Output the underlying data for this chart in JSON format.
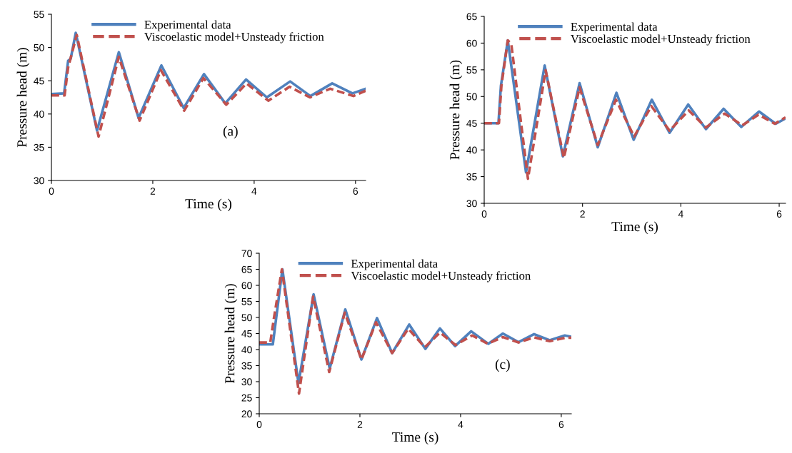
{
  "chart_data": [
    {
      "type": "line",
      "xlabel": "Time (s)",
      "ylabel": "Pressure head (m)",
      "xlim": [
        0,
        6.2
      ],
      "xticks": [
        0,
        2,
        4,
        6
      ],
      "ylim": [
        30,
        55
      ],
      "yticks": [
        30,
        35,
        40,
        45,
        50,
        55
      ],
      "legend": "top",
      "grid": false,
      "annotations": [
        "(a)"
      ],
      "series": [
        {
          "name": "Experimental data",
          "color": "#4f81bd",
          "line_style": "solid",
          "x": [
            0,
            0.25,
            0.33,
            0.38,
            0.48,
            0.9,
            1.33,
            1.72,
            2.17,
            2.61,
            3.01,
            3.43,
            3.84,
            4.25,
            4.71,
            5.11,
            5.54,
            5.94,
            6.2
          ],
          "values": [
            43,
            43.1,
            48,
            48.3,
            52.2,
            37.5,
            49.3,
            39.4,
            47.3,
            40.9,
            46,
            41.6,
            45.2,
            42.5,
            44.9,
            42.7,
            44.6,
            43.1,
            43.8
          ]
        },
        {
          "name": "Viscoelastic model+Unsteady friction",
          "color": "#c0504d",
          "line_style": "dashed",
          "x": [
            0,
            0.26,
            0.33,
            0.5,
            0.93,
            1.33,
            1.74,
            2.16,
            2.62,
            3.0,
            3.45,
            3.85,
            4.28,
            4.7,
            5.1,
            5.5,
            5.96,
            6.2
          ],
          "values": [
            42.8,
            42.8,
            47,
            51.9,
            36.6,
            48.6,
            39.0,
            46.6,
            40.5,
            45.4,
            41.4,
            44.6,
            42.0,
            44.1,
            42.5,
            43.8,
            42.7,
            43.5
          ]
        }
      ]
    },
    {
      "type": "line",
      "xlabel": "Time (s)",
      "ylabel": "Pressure head (m)",
      "xlim": [
        0,
        6.13
      ],
      "xticks": [
        0,
        2,
        4,
        6
      ],
      "ylim": [
        30,
        65
      ],
      "yticks": [
        30,
        35,
        40,
        45,
        50,
        55,
        60,
        65
      ],
      "legend": "top",
      "grid": false,
      "series": [
        {
          "name": "Experimental data",
          "color": "#4f81bd",
          "line_style": "solid",
          "x": [
            0,
            0.29,
            0.34,
            0.48,
            0.85,
            1.23,
            1.6,
            1.94,
            2.31,
            2.69,
            3.04,
            3.41,
            3.77,
            4.15,
            4.51,
            4.87,
            5.23,
            5.59,
            5.93,
            6.13
          ],
          "values": [
            45,
            45,
            52,
            60.5,
            35.8,
            55.8,
            38.8,
            52.5,
            40.5,
            50.7,
            41.9,
            49.4,
            43.2,
            48.5,
            43.9,
            47.7,
            44.3,
            47.2,
            44.9,
            45.9
          ]
        },
        {
          "name": "Viscoelastic model+Unsteady friction",
          "color": "#c0504d",
          "line_style": "dashed",
          "x": [
            0,
            0.3,
            0.35,
            0.48,
            0.55,
            0.89,
            1.25,
            1.62,
            1.94,
            2.31,
            2.68,
            3.05,
            3.4,
            3.77,
            4.16,
            4.51,
            4.89,
            5.25,
            5.58,
            5.91,
            6.13
          ],
          "values": [
            45,
            45,
            52,
            60.5,
            59.9,
            34.6,
            54.9,
            38.5,
            51.7,
            40.9,
            49.4,
            42.5,
            48.2,
            43.6,
            47.4,
            44.2,
            46.8,
            44.6,
            46.6,
            44.9,
            46.1
          ]
        }
      ]
    },
    {
      "type": "line",
      "xlabel": "Time (s)",
      "ylabel": "Pressure head (m)",
      "xlim": [
        0,
        6.2
      ],
      "xticks": [
        0,
        2,
        4,
        6
      ],
      "ylim": [
        20,
        70
      ],
      "yticks": [
        20,
        25,
        30,
        35,
        40,
        45,
        50,
        55,
        60,
        65,
        70
      ],
      "legend": "top",
      "grid": false,
      "annotations": [
        "(c)"
      ],
      "series": [
        {
          "name": "Experimental data",
          "color": "#4f81bd",
          "line_style": "solid",
          "x": [
            0,
            0.27,
            0.46,
            0.78,
            1.08,
            1.4,
            1.71,
            2.03,
            2.34,
            2.64,
            2.98,
            3.3,
            3.59,
            3.89,
            4.21,
            4.55,
            4.84,
            5.15,
            5.46,
            5.77,
            6.07,
            6.2
          ],
          "values": [
            41.6,
            41.6,
            65,
            29.5,
            57.2,
            34.1,
            52.5,
            36.9,
            49.8,
            38.9,
            47.8,
            40.2,
            46.6,
            41.1,
            45.7,
            41.8,
            45,
            42.3,
            44.8,
            42.9,
            44.4,
            44
          ]
        },
        {
          "name": "Viscoelastic model+Unsteady friction",
          "color": "#c0504d",
          "line_style": "dashed",
          "x": [
            0,
            0.22,
            0.29,
            0.45,
            0.79,
            1.07,
            1.39,
            1.7,
            2.03,
            2.32,
            2.64,
            2.96,
            3.29,
            3.59,
            3.9,
            4.23,
            4.54,
            4.84,
            5.15,
            5.46,
            5.77,
            6.09,
            6.2
          ],
          "values": [
            42.2,
            42.2,
            49.6,
            65,
            26.3,
            56.5,
            33,
            51.5,
            36.9,
            48.5,
            38.9,
            46.5,
            40.7,
            45.3,
            41.4,
            44.4,
            41.8,
            43.9,
            42.2,
            43.8,
            42.6,
            43.7,
            43.7
          ]
        }
      ]
    }
  ]
}
